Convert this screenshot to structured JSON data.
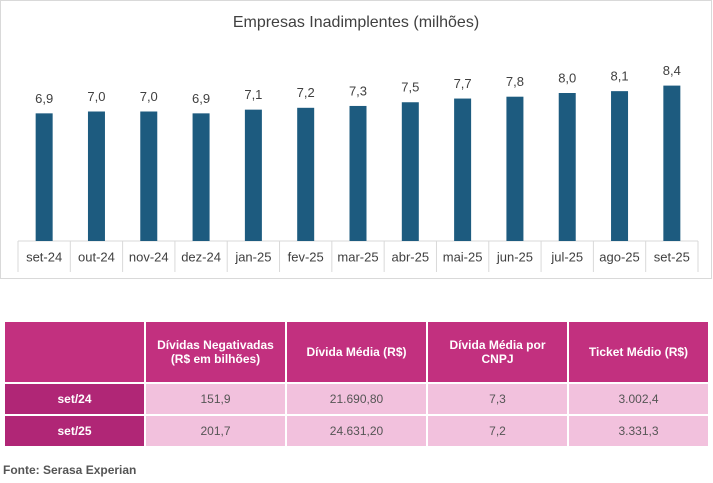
{
  "chart_data": {
    "type": "bar",
    "title": "Empresas Inadimplentes (milhões)",
    "categories": [
      "set-24",
      "out-24",
      "nov-24",
      "dez-24",
      "jan-25",
      "fev-25",
      "mar-25",
      "abr-25",
      "mai-25",
      "jun-25",
      "jul-25",
      "ago-25",
      "set-25"
    ],
    "values": [
      6.9,
      7.0,
      7.0,
      6.9,
      7.1,
      7.2,
      7.3,
      7.5,
      7.7,
      7.8,
      8.0,
      8.1,
      8.4
    ],
    "value_labels": [
      "6,9",
      "7,0",
      "7,0",
      "6,9",
      "7,1",
      "7,2",
      "7,3",
      "7,5",
      "7,7",
      "7,8",
      "8,0",
      "8,1",
      "8,4"
    ],
    "color": "#1d5b7f"
  },
  "table": {
    "columns": [
      "Dívidas Negativadas (R$ em bilhões)",
      "Dívida Média (R$)",
      "Dívida Média por CNPJ",
      "Ticket Médio (R$)"
    ],
    "rows": [
      {
        "label": "set/24",
        "values": [
          "151,9",
          "21.690,80",
          "7,3",
          "3.002,4"
        ]
      },
      {
        "label": "set/25",
        "values": [
          "201,7",
          "24.631,20",
          "7,2",
          "3.331,3"
        ]
      }
    ]
  },
  "source": "Fonte: Serasa Experian"
}
